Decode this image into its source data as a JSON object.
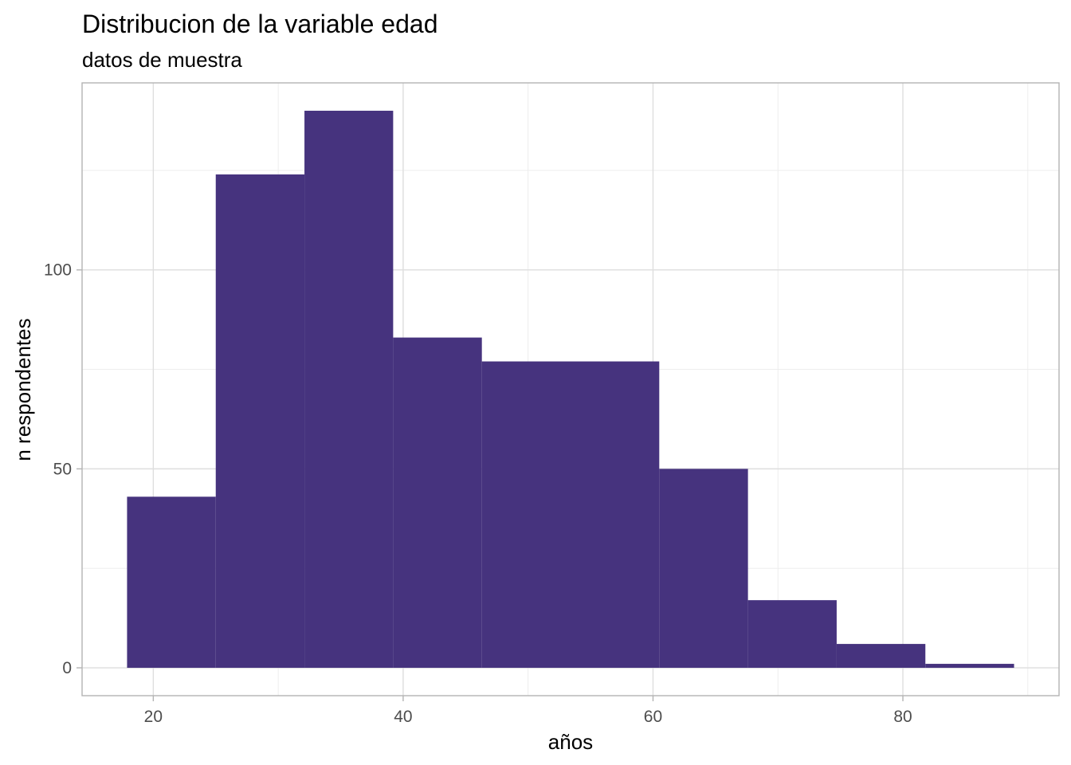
{
  "chart_data": {
    "type": "bar",
    "title": "Distribucion de la variable edad",
    "subtitle": "datos de muestra",
    "xlabel": "años",
    "ylabel": "n respondentes",
    "bar_color": "#46337E",
    "grid": true,
    "bins": [
      {
        "x0": 17.9,
        "x1": 25.0,
        "count": 43
      },
      {
        "x0": 25.0,
        "x1": 32.1,
        "count": 124
      },
      {
        "x0": 32.1,
        "x1": 39.2,
        "count": 140
      },
      {
        "x0": 39.2,
        "x1": 46.3,
        "count": 83
      },
      {
        "x0": 46.3,
        "x1": 53.4,
        "count": 77
      },
      {
        "x0": 53.4,
        "x1": 60.5,
        "count": 77
      },
      {
        "x0": 60.5,
        "x1": 67.6,
        "count": 50
      },
      {
        "x0": 67.6,
        "x1": 74.7,
        "count": 17
      },
      {
        "x0": 74.7,
        "x1": 81.8,
        "count": 6
      },
      {
        "x0": 81.8,
        "x1": 88.9,
        "count": 1
      }
    ],
    "x_ticks": [
      20,
      40,
      60,
      80
    ],
    "x_minor_ticks": [
      30,
      50,
      70,
      90
    ],
    "y_ticks": [
      0,
      50,
      100
    ],
    "y_minor_ticks": [
      25,
      75,
      125
    ],
    "xlim": [
      14.3,
      92.5
    ],
    "ylim": [
      -7,
      147
    ]
  }
}
